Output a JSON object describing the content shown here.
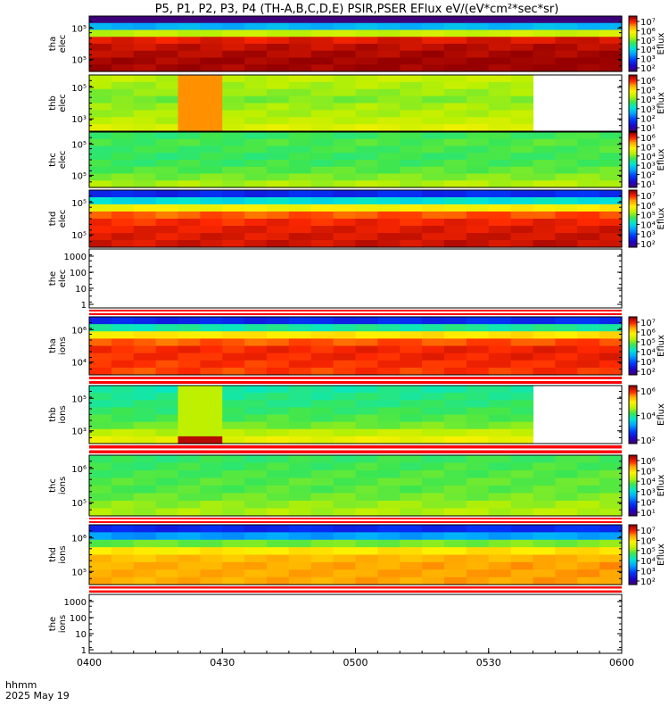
{
  "title": "P5, P1, P2, P3, P4 (TH-A,B,C,D,E) PSIR,PSER EFlux eV/(eV*cm²*sec*sr)",
  "time_label": "hhmm",
  "date_label": "2025 May 19",
  "x_ticks": [
    "0400",
    "0430",
    "0500",
    "0530",
    "0600"
  ],
  "colors": {
    "red_bar": "#ff0000",
    "frame": "#000000"
  },
  "chart_data": [
    {
      "type": "heatmap",
      "name": "tha-elec",
      "ylabel": [
        "tha",
        "elec"
      ],
      "yticks": [
        "10⁵",
        "10⁵"
      ],
      "zlabel": "Eflux",
      "cbar_ticks": [
        "10⁷",
        "10⁶",
        "10⁵",
        "10⁴",
        "10³",
        "10²"
      ],
      "cbar_range": [
        1,
        7.4
      ],
      "x_bins": 24,
      "rows": [
        "0.4",
        "3.1",
        "5.0",
        "6.9",
        "7.1",
        "7.2",
        "7.3",
        "7.3"
      ]
    },
    {
      "type": "heatmap",
      "name": "thb-elec",
      "ylabel": [
        "thb",
        "elec"
      ],
      "yticks": [
        "10⁵",
        "10³"
      ],
      "zlabel": "Eflux",
      "cbar_ticks": [
        "10⁶",
        "10⁵",
        "10⁴",
        "10³",
        "10²",
        "10¹"
      ],
      "cbar_range": [
        0,
        6.4
      ],
      "x_bins": 24,
      "data_end_bin": 20,
      "special": {
        "bins": [
          4,
          5
        ],
        "color_level": 0.83
      },
      "rows": [
        "0.62",
        "0.60",
        "0.58",
        "0.56",
        "0.59",
        "0.60",
        "0.62",
        "0.66"
      ]
    },
    {
      "type": "heatmap",
      "name": "thc-elec",
      "ylabel": [
        "thc",
        "elec"
      ],
      "yticks": [
        "10⁵",
        "10⁵"
      ],
      "zlabel": "Eflux",
      "cbar_ticks": [
        "10⁶",
        "10⁵",
        "10⁴",
        "10³",
        "10²",
        "10¹"
      ],
      "cbar_range": [
        0,
        6.4
      ],
      "x_bins": 24,
      "rows": [
        "0.50",
        "0.52",
        "0.51",
        "0.50",
        "0.51",
        "0.53",
        "0.56",
        "0.60"
      ]
    },
    {
      "type": "heatmap",
      "name": "thd-elec",
      "ylabel": [
        "thd",
        "elec"
      ],
      "yticks": [
        "10⁵",
        "10⁵"
      ],
      "zlabel": "Eflux",
      "cbar_ticks": [
        "10⁷",
        "10⁶",
        "10⁵",
        "10⁴",
        "10³",
        "10²"
      ],
      "cbar_range": [
        1,
        7.4
      ],
      "x_bins": 24,
      "rows": [
        "0.15",
        "0.40",
        "0.70",
        "0.86",
        "0.90",
        "0.92",
        "0.93",
        "0.94"
      ]
    },
    {
      "type": "empty",
      "name": "the-elec",
      "ylabel": [
        "the",
        "elec"
      ],
      "yticks": [
        "1000",
        "100",
        "10",
        "1"
      ]
    },
    {
      "type": "heatmap",
      "name": "tha-ions",
      "ylabel": [
        "tha",
        "ions"
      ],
      "yticks": [
        "10⁶",
        "10⁴"
      ],
      "zlabel": "Eflux",
      "cbar_ticks": [
        "10⁷",
        "10⁶",
        "10⁵",
        "10⁴",
        "10³",
        "10²"
      ],
      "cbar_range": [
        1,
        7.4
      ],
      "x_bins": 24,
      "rows": [
        "0.15",
        "0.45",
        "0.72",
        "0.86",
        "0.90",
        "0.90",
        "0.89",
        "0.88"
      ]
    },
    {
      "type": "heatmap",
      "name": "thb-ions",
      "ylabel": [
        "thb",
        "ions"
      ],
      "yticks": [
        "10⁵",
        "10³"
      ],
      "zlabel": "Eflux",
      "cbar_ticks": [
        "10⁶",
        "10⁴",
        "10²"
      ],
      "cbar_range": [
        1,
        6.6
      ],
      "x_bins": 24,
      "data_end_bin": 20,
      "special": {
        "bins": [
          4,
          5
        ],
        "color_level": 0.62
      },
      "rows": [
        "0.45",
        "0.47",
        "0.48",
        "0.50",
        "0.52",
        "0.55",
        "0.62",
        "0.68"
      ]
    },
    {
      "type": "heatmap",
      "name": "thc-ions",
      "ylabel": [
        "thc",
        "ions"
      ],
      "yticks": [
        "10⁶",
        "10⁵"
      ],
      "zlabel": "Eflux",
      "cbar_ticks": [
        "10⁶",
        "10⁵",
        "10⁴",
        "10³",
        "10²",
        "10¹"
      ],
      "cbar_range": [
        0,
        6.4
      ],
      "x_bins": 24,
      "rows": [
        "0.50",
        "0.51",
        "0.52",
        "0.53",
        "0.53",
        "0.55",
        "0.58",
        "0.60"
      ]
    },
    {
      "type": "heatmap",
      "name": "thd-ions",
      "ylabel": [
        "thd",
        "ions"
      ],
      "yticks": [
        "10⁶",
        "10⁵"
      ],
      "zlabel": "Eflux",
      "cbar_ticks": [
        "10⁷",
        "10⁶",
        "10⁵",
        "10⁴",
        "10³",
        "10²"
      ],
      "cbar_range": [
        1,
        7.4
      ],
      "x_bins": 24,
      "rows": [
        "0.15",
        "0.30",
        "0.55",
        "0.72",
        "0.78",
        "0.80",
        "0.80",
        "0.80"
      ]
    },
    {
      "type": "empty",
      "name": "the-ions",
      "ylabel": [
        "the",
        "ions"
      ],
      "yticks": [
        "1000",
        "100",
        "10",
        "1"
      ]
    }
  ]
}
